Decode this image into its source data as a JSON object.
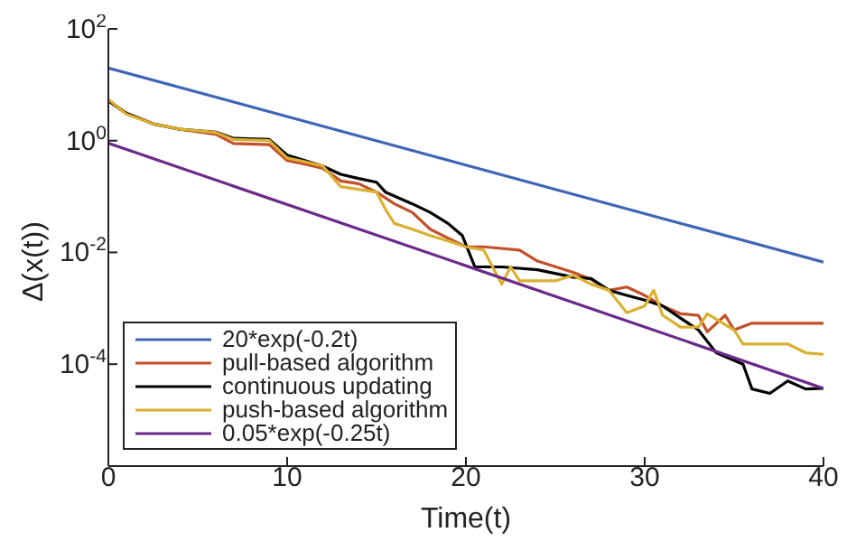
{
  "chart_data": {
    "type": "line",
    "xlabel": "Time(t)",
    "ylabel": "Δ(x(t))",
    "log": "y",
    "xlim": [
      0,
      40
    ],
    "xticks": [
      0,
      10,
      20,
      30,
      40
    ],
    "ylim": [
      1.5e-06,
      100
    ],
    "yticks": [
      {
        "value": 100,
        "label": "10$^{2}$"
      },
      {
        "value": 1,
        "label": "10$^{0}$"
      },
      {
        "value": 0.01,
        "label": "10$^{-2}$"
      },
      {
        "value": 0.0001,
        "label": "10$^{-4}$"
      }
    ],
    "grid": false,
    "legend": "bottom left",
    "marker": "none",
    "line_style": "solid",
    "series": [
      {
        "name": "20*exp(-0.2t)",
        "color": "#4065b6",
        "x": [
          0,
          40
        ],
        "values": [
          20,
          0.0067
        ]
      },
      {
        "name": "pull-based algorithm",
        "color": "#c4502a",
        "x": [
          0,
          1,
          2.5,
          4,
          6,
          7,
          9,
          10,
          11,
          12,
          13,
          14,
          15,
          16,
          17,
          18,
          19,
          20,
          21,
          23,
          24,
          26,
          27,
          28,
          29,
          30,
          31,
          32,
          33,
          33.5,
          34.5,
          35,
          36,
          40
        ],
        "values": [
          5.2,
          3.1,
          2.0,
          1.6,
          1.3,
          0.89,
          0.85,
          0.44,
          0.38,
          0.32,
          0.19,
          0.17,
          0.12,
          0.074,
          0.052,
          0.026,
          0.018,
          0.0126,
          0.0126,
          0.011,
          0.007,
          0.0044,
          0.0033,
          0.0021,
          0.0024,
          0.0017,
          0.0011,
          0.0008,
          0.00075,
          0.00038,
          0.00075,
          0.00041,
          0.00054,
          0.00054
        ]
      },
      {
        "name": "continuous updating",
        "color": "#000000",
        "x": [
          0,
          1,
          2.5,
          4,
          6,
          7,
          9,
          10,
          11,
          12,
          13,
          14,
          15,
          15.5,
          17,
          18,
          19,
          19.8,
          20.5,
          22,
          24,
          26,
          27,
          28,
          29,
          30,
          31,
          32,
          33,
          34,
          35.5,
          36,
          37,
          38,
          39,
          40
        ],
        "values": [
          5.2,
          3.1,
          2.0,
          1.6,
          1.42,
          1.1,
          1.05,
          0.55,
          0.44,
          0.35,
          0.25,
          0.21,
          0.18,
          0.12,
          0.074,
          0.052,
          0.033,
          0.02,
          0.0055,
          0.0055,
          0.0049,
          0.0036,
          0.0034,
          0.0021,
          0.0017,
          0.0014,
          0.0011,
          0.00067,
          0.00041,
          0.00016,
          0.0001,
          3.6e-05,
          3e-05,
          5e-05,
          3.6e-05,
          3.7e-05
        ]
      },
      {
        "name": "push-based algorithm",
        "color": "#dbb030",
        "x": [
          0,
          1,
          2.5,
          4,
          6,
          7,
          9,
          10,
          11,
          12,
          13,
          15,
          15.5,
          16,
          17,
          18,
          19,
          20,
          21,
          22,
          22.5,
          23,
          25,
          26,
          27,
          28,
          29,
          30,
          30.5,
          31,
          32,
          33,
          33.5,
          35,
          35.5,
          38,
          39,
          40
        ],
        "values": [
          5.5,
          3.0,
          2.0,
          1.6,
          1.4,
          1.05,
          1.0,
          0.49,
          0.42,
          0.35,
          0.15,
          0.12,
          0.059,
          0.033,
          0.026,
          0.02,
          0.016,
          0.0126,
          0.011,
          0.0027,
          0.0055,
          0.0031,
          0.0031,
          0.0039,
          0.0027,
          0.0021,
          0.00083,
          0.0011,
          0.0021,
          0.00075,
          0.00046,
          0.00046,
          0.0008,
          0.00041,
          0.00023,
          0.00023,
          0.00016,
          0.00015
        ]
      },
      {
        "name": "0.05*exp(-0.25t)",
        "color": "#6a2a8a",
        "x": [
          0,
          40
        ],
        "values": [
          0.9,
          3.7e-05
        ]
      }
    ]
  }
}
